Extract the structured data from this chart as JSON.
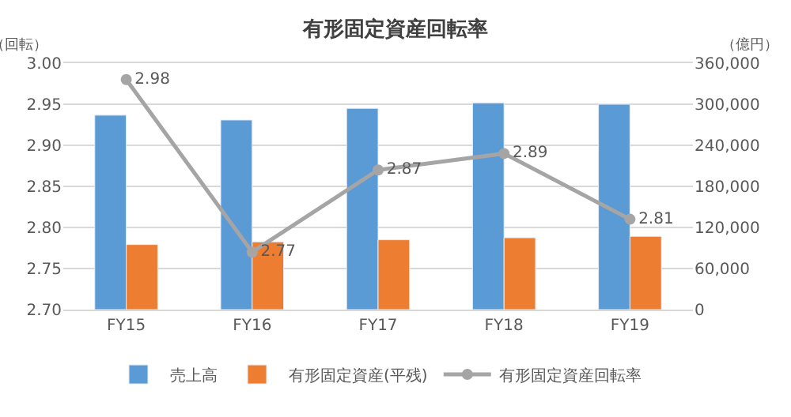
{
  "chart_data": {
    "type": "bar",
    "title": "有形固定資産回転率",
    "categories": [
      "FY15",
      "FY16",
      "FY17",
      "FY18",
      "FY19"
    ],
    "series": [
      {
        "name": "売上高",
        "color": "#5b9bd5",
        "axis": "y2",
        "values": [
          284000,
          277000,
          294000,
          302000,
          300000
        ]
      },
      {
        "name": "有形固定資産(平残)",
        "color": "#ed7d31",
        "axis": "y2",
        "values": [
          95000,
          99000,
          102000,
          105000,
          107000
        ]
      },
      {
        "name": "有形固定資産回転率",
        "type": "line",
        "color": "#a5a5a5",
        "axis": "y",
        "marker": "circle",
        "values": [
          2.98,
          2.77,
          2.87,
          2.89,
          2.81
        ],
        "value_labels": [
          "2.98",
          "2.77",
          "2.87",
          "2.89",
          "2.81"
        ]
      }
    ],
    "ylim": [
      2.7,
      3.0
    ],
    "yticks": [
      "2.70",
      "2.75",
      "2.80",
      "2.85",
      "2.90",
      "2.95",
      "3.00"
    ],
    "y2lim": [
      0,
      360000
    ],
    "y2ticks": [
      0,
      {
        "value": 60000,
        "label": "60,000"
      },
      {
        "value": 120000,
        "label": "120,000"
      },
      {
        "value": 180000,
        "label": "180,000"
      },
      {
        "value": 240000,
        "label": "240,000"
      },
      {
        "value": 300000,
        "label": "300,000"
      },
      {
        "value": 360000,
        "label": "360,000"
      }
    ],
    "ylabel": "（回転）",
    "y2label": "（億円）",
    "grid": "y",
    "legend": "bottom"
  }
}
